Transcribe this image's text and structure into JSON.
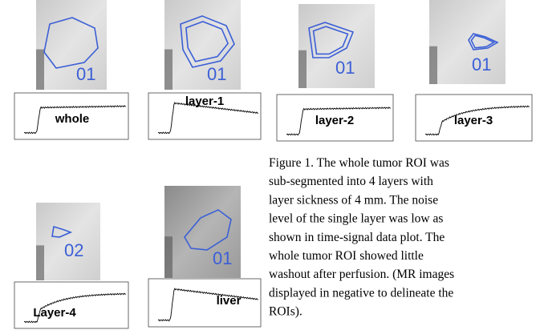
{
  "panels": [
    {
      "roi_label": "01",
      "plot_label": "whole"
    },
    {
      "roi_label": "01",
      "plot_label": "layer-1"
    },
    {
      "roi_label": "01",
      "plot_label": "layer-2"
    },
    {
      "roi_label": "01",
      "plot_label": "layer-3"
    },
    {
      "roi_label": "02",
      "plot_label": "Layer-4"
    },
    {
      "roi_label": "01",
      "plot_label": "liver"
    }
  ],
  "caption": {
    "lines": [
      "Figure 1. The whole tumor ROI was",
      "sub-segmented into 4 layers with",
      "layer sickness of 4 mm. The noise",
      "level of the single layer was low as",
      "shown in time-signal data plot. The",
      "whole tumor ROI showed little",
      "washout after perfusion. (MR images",
      "displayed in negative to delineate the",
      "ROIs)."
    ]
  }
}
